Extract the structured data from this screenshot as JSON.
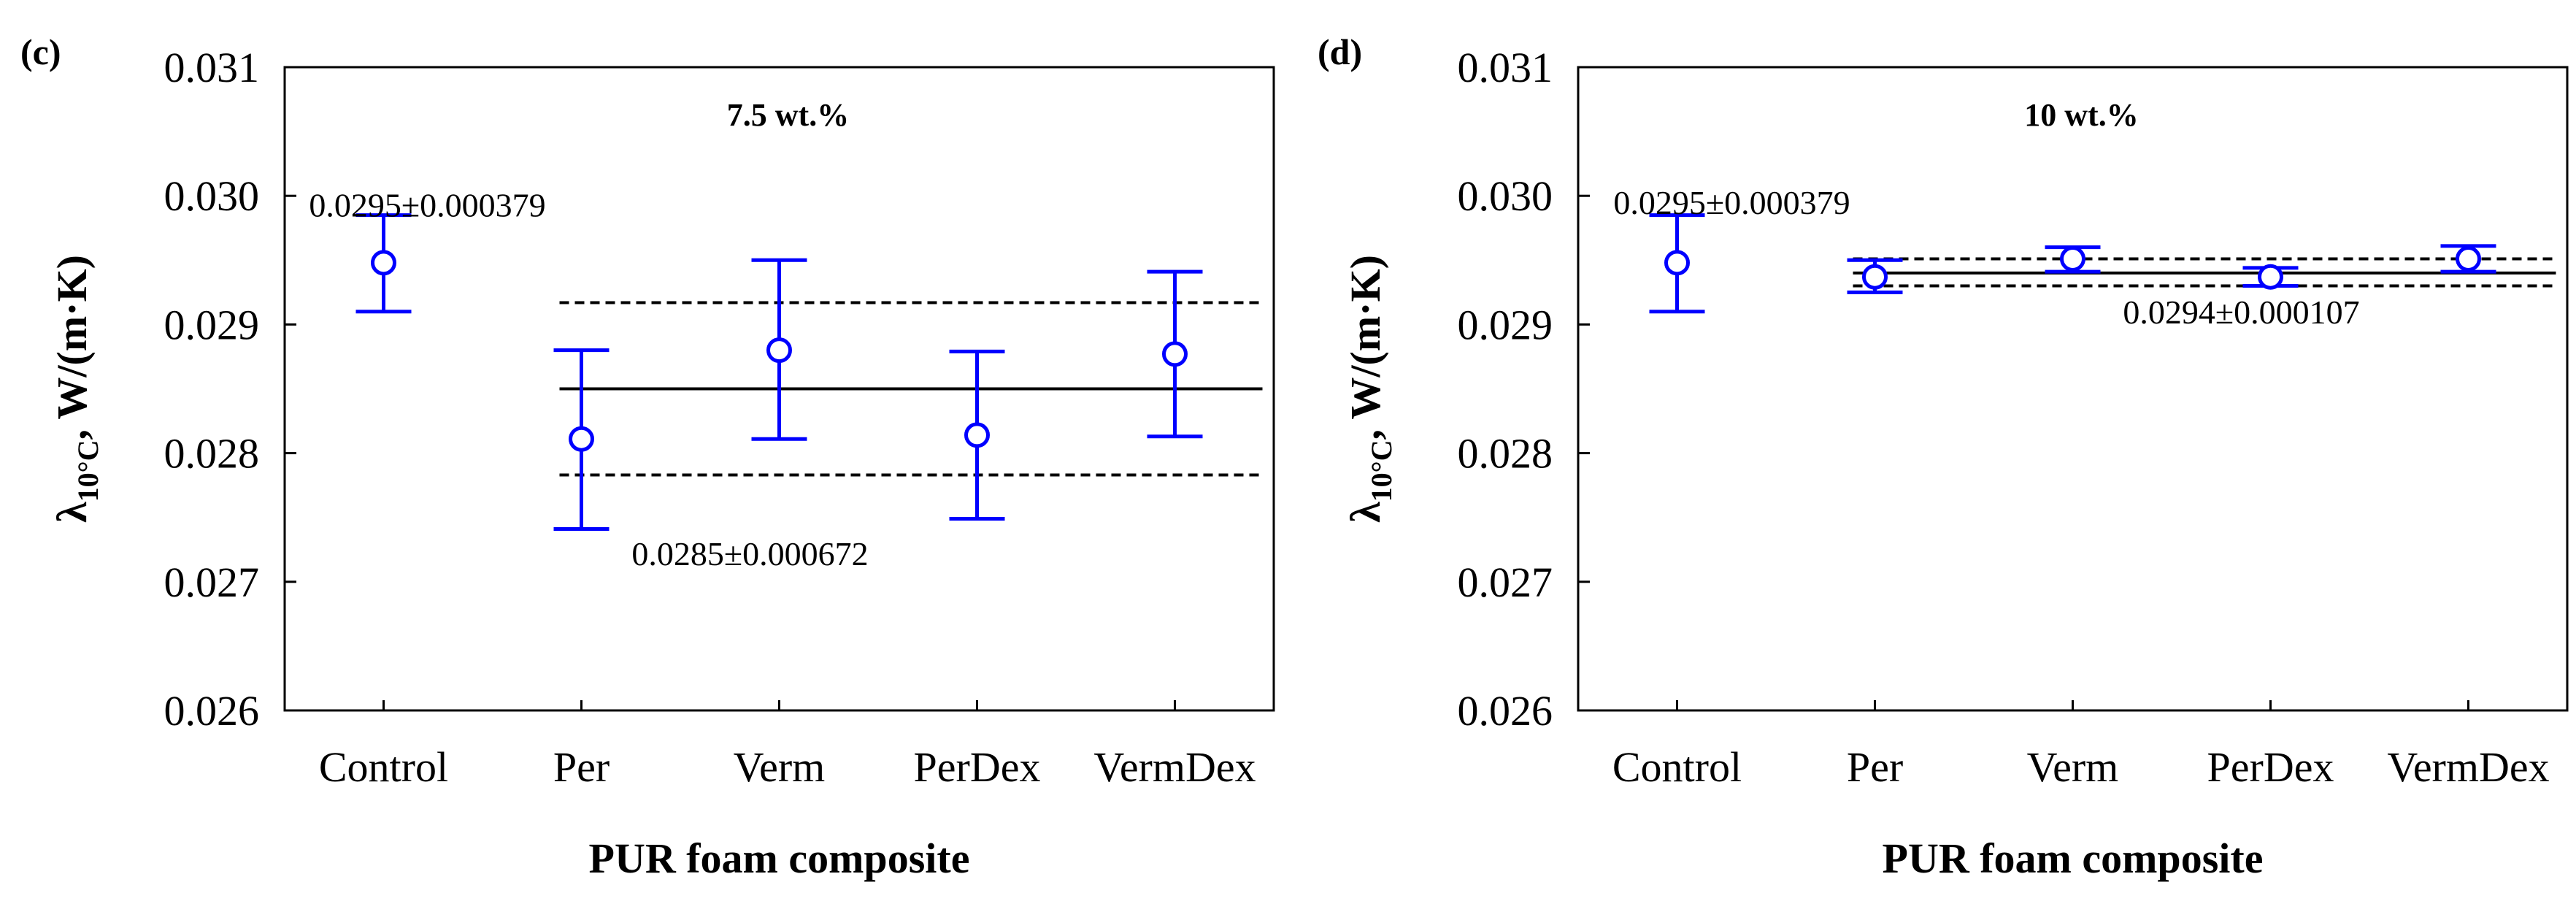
{
  "chart_data": [
    {
      "type": "scatter",
      "panel_label": "(c)",
      "title": "7.5 wt.%",
      "xlabel": "PUR foam composite",
      "ylabel": {
        "symbol": "λ",
        "subscript": "10°C",
        "unit": ", W/(m·K)"
      },
      "ylim": [
        0.026,
        0.031
      ],
      "yticks": [
        "0.026",
        "0.027",
        "0.028",
        "0.029",
        "0.030",
        "0.031"
      ],
      "categories": [
        "Control",
        "Per",
        "Verm",
        "PerDex",
        "VermDex"
      ],
      "series": [
        {
          "name": "λ10°C",
          "color": "#0000ff",
          "values": [
            0.02948,
            0.02811,
            0.0288,
            0.02814,
            0.02877
          ],
          "error_low": [
            0.0291,
            0.02741,
            0.02811,
            0.02749,
            0.02813
          ],
          "error_high": [
            0.02985,
            0.0288,
            0.0295,
            0.02879,
            0.02941
          ]
        }
      ],
      "reference_lines": {
        "mean": 0.0285,
        "upper": 0.02917,
        "lower": 0.02783,
        "span_categories": [
          "Per",
          "VermDex"
        ]
      },
      "annotations": [
        {
          "text": "0.0295±0.000379",
          "at_category": "Control",
          "y": 0.02993
        },
        {
          "text": "0.0285±0.000672",
          "at_category": "Verm",
          "y": 0.02722
        }
      ],
      "grid": false
    },
    {
      "type": "scatter",
      "panel_label": "(d)",
      "title": "10 wt.%",
      "xlabel": "PUR foam composite",
      "ylabel": {
        "symbol": "λ",
        "subscript": "10°C",
        "unit": ", W/(m·K)"
      },
      "ylim": [
        0.026,
        0.031
      ],
      "yticks": [
        "0.026",
        "0.027",
        "0.028",
        "0.029",
        "0.030",
        "0.031"
      ],
      "categories": [
        "Control",
        "Per",
        "Verm",
        "PerDex",
        "VermDex"
      ],
      "series": [
        {
          "name": "λ10°C",
          "color": "#0000ff",
          "values": [
            0.02948,
            0.02937,
            0.02951,
            0.02937,
            0.02951
          ],
          "error_low": [
            0.0291,
            0.02925,
            0.02941,
            0.0293,
            0.02941
          ],
          "error_high": [
            0.02985,
            0.0295,
            0.0296,
            0.02944,
            0.02961
          ]
        }
      ],
      "reference_lines": {
        "mean": 0.0294,
        "upper": 0.02951,
        "lower": 0.0293,
        "span_categories": [
          "Per",
          "VermDex"
        ]
      },
      "annotations": [
        {
          "text": "0.0295±0.000379",
          "at_category": "Control",
          "y": 0.02995
        },
        {
          "text": "0.0294±0.000107",
          "at_category": "PerDex",
          "y": 0.0291
        }
      ],
      "grid": false
    }
  ]
}
